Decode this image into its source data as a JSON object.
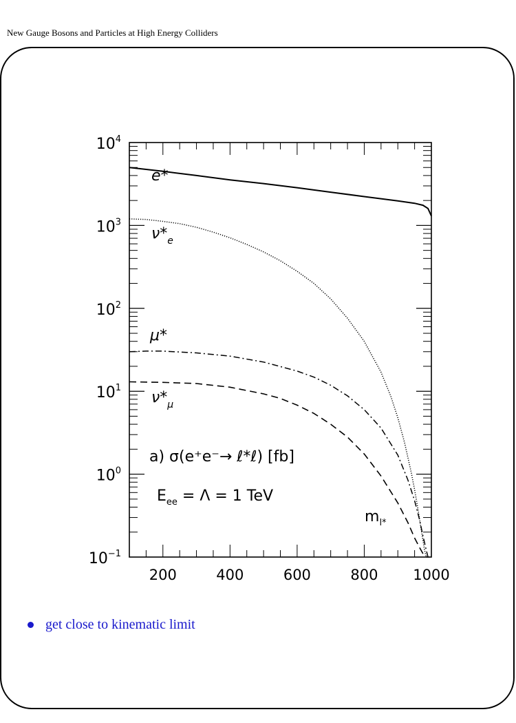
{
  "header": {
    "title": "New Gauge Bosons and Particles at High Energy Colliders"
  },
  "bullet": {
    "text": "get close to kinematic limit",
    "color": "#1a1acc"
  },
  "chart_data": {
    "type": "line",
    "log_y": true,
    "xlim": [
      100,
      1000
    ],
    "ylim": [
      0.1,
      10000
    ],
    "x_ticks": [
      200,
      400,
      600,
      800,
      1000
    ],
    "x_tick_labels": [
      "200",
      "400",
      "600",
      "800",
      "1000"
    ],
    "y_ticks": [
      {
        "base": "10",
        "exp": "4",
        "value": 10000
      },
      {
        "base": "10",
        "exp": "3",
        "value": 1000
      },
      {
        "base": "10",
        "exp": "2",
        "value": 100
      },
      {
        "base": "10",
        "exp": "1",
        "value": 10
      },
      {
        "base": "10",
        "exp": "0",
        "value": 1
      },
      {
        "base": "10",
        "exp": "−1",
        "value": 0.1
      }
    ],
    "annotation_process": {
      "prefix": "a)",
      "formula": "σ(e⁺e⁻→ ℓ*ℓ)",
      "unit": "[fb]"
    },
    "annotation_energy": {
      "lhs": "E",
      "lhs_sub": "ee",
      "rhs": "= Λ = 1 TeV"
    },
    "xlabel": {
      "main": "m",
      "sub": "l*"
    },
    "series": [
      {
        "name": "e*",
        "style": "solid",
        "x": [
          100,
          200,
          300,
          400,
          500,
          600,
          700,
          800,
          850,
          900,
          950,
          975,
          990,
          1000
        ],
        "y": [
          5000,
          4500,
          4000,
          3550,
          3200,
          2850,
          2520,
          2230,
          2100,
          1980,
          1850,
          1750,
          1600,
          1300
        ]
      },
      {
        "name": "ν*",
        "sub": "e",
        "style": "dotted",
        "x": [
          100,
          150,
          200,
          250,
          300,
          350,
          400,
          450,
          500,
          550,
          600,
          650,
          700,
          750,
          800,
          850,
          880,
          900,
          920,
          940,
          950,
          960,
          970,
          980,
          985,
          990,
          995,
          1000
        ],
        "y": [
          1200,
          1180,
          1120,
          1050,
          950,
          830,
          710,
          590,
          480,
          375,
          280,
          200,
          130,
          76,
          40,
          17,
          8.5,
          4.8,
          2.4,
          1.05,
          0.65,
          0.38,
          0.21,
          0.12,
          0.1,
          0.1,
          0.1,
          0.1
        ]
      },
      {
        "name": "μ*",
        "style": "dashdot",
        "x": [
          100,
          150,
          200,
          300,
          400,
          500,
          600,
          650,
          700,
          750,
          800,
          850,
          900,
          930,
          950,
          965,
          975,
          985,
          990,
          995
        ],
        "y": [
          30,
          30.5,
          30.5,
          29,
          26.5,
          22.5,
          17.5,
          14.8,
          11.8,
          8.8,
          6.0,
          3.6,
          1.7,
          0.85,
          0.48,
          0.28,
          0.18,
          0.12,
          0.1,
          0.1
        ]
      },
      {
        "name": "ν*",
        "sub": "μ",
        "style": "dashed",
        "x": [
          100,
          150,
          200,
          300,
          400,
          500,
          550,
          600,
          650,
          700,
          750,
          800,
          850,
          900,
          930,
          950,
          965,
          975,
          985
        ],
        "y": [
          13,
          12.9,
          12.8,
          12.4,
          11.2,
          9.3,
          8.2,
          6.8,
          5.4,
          4.0,
          2.8,
          1.75,
          0.95,
          0.45,
          0.26,
          0.17,
          0.13,
          0.11,
          0.1
        ]
      }
    ]
  }
}
